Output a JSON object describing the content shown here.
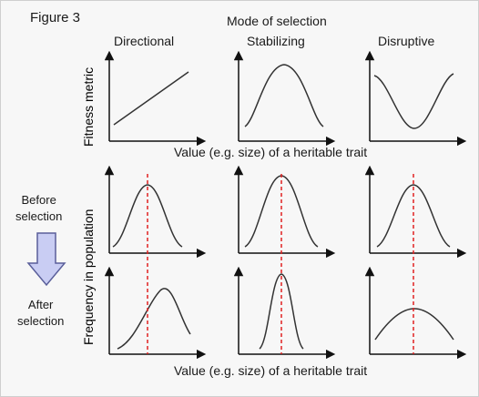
{
  "figure_label": "Figure 3",
  "mode_title": "Mode of selection",
  "columns": [
    "Directional",
    "Stabilizing",
    "Disruptive"
  ],
  "top_ylabel": "Fitness metric",
  "top_xlabel": "Value (e.g. size) of a heritable trait",
  "bottom_ylabel": "Frequency in population",
  "bottom_xlabel": "Value (e.g. size) of a heritable trait",
  "before_label": [
    "Before",
    "selection"
  ],
  "after_label": [
    "After",
    "selection"
  ],
  "colors": {
    "curve": "#333333",
    "axis": "#111111",
    "mean_line": "#e02020",
    "arrow_fill": "#c9cdf3",
    "arrow_stroke": "#5a5f9a"
  }
}
